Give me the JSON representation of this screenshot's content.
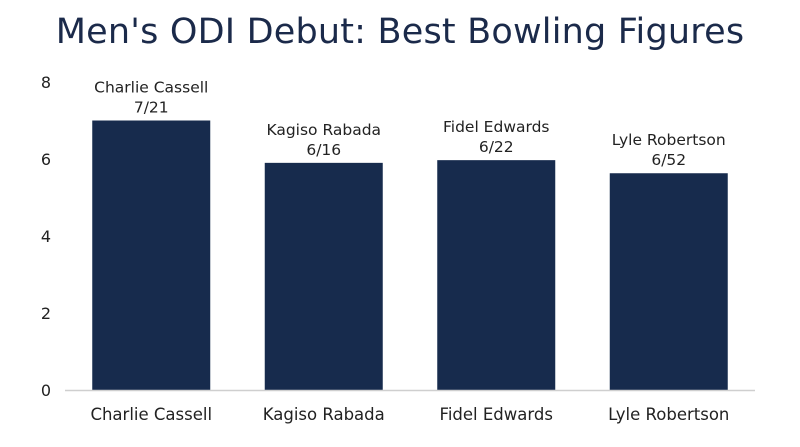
{
  "chart_data": {
    "type": "bar",
    "title": "Men's ODI Debut: Best Bowling Figures",
    "xlabel": "",
    "ylabel": "",
    "categories": [
      "Charlie Cassell",
      "Kagiso Rabada",
      "Fidel Edwards",
      "Lyle Robertson"
    ],
    "values": [
      7.0,
      5.9,
      5.97,
      5.63
    ],
    "data_labels": [
      [
        "Charlie Cassell",
        "7/21"
      ],
      [
        "Kagiso Rabada",
        "6/16"
      ],
      [
        "Fidel Edwards",
        "6/22"
      ],
      [
        "Lyle Robertson",
        "6/52"
      ]
    ],
    "ylim": [
      0,
      8
    ],
    "yticks": [
      0,
      2,
      4,
      6,
      8
    ],
    "grid": false,
    "legend": "none",
    "bar_color": "#172b4d",
    "axis_color": "#cfcfcf"
  }
}
